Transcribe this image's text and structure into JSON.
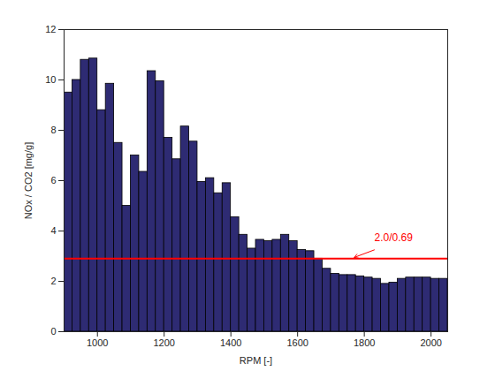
{
  "chart_data": {
    "type": "bar",
    "x_label": "RPM [-]",
    "y_label": "NOx / CO2 [mg/g]",
    "x": [
      912.5,
      937.5,
      962.5,
      987.5,
      1012.5,
      1037.5,
      1062.5,
      1087.5,
      1112.5,
      1137.5,
      1162.5,
      1187.5,
      1212.5,
      1237.5,
      1262.5,
      1287.5,
      1312.5,
      1337.5,
      1362.5,
      1387.5,
      1412.5,
      1437.5,
      1462.5,
      1487.5,
      1512.5,
      1537.5,
      1562.5,
      1587.5,
      1612.5,
      1637.5,
      1662.5,
      1687.5,
      1712.5,
      1737.5,
      1762.5,
      1787.5,
      1812.5,
      1837.5,
      1862.5,
      1887.5,
      1912.5,
      1937.5,
      1962.5,
      1987.5,
      2012.5,
      2037.5
    ],
    "values": [
      9.5,
      10.0,
      10.8,
      10.85,
      8.8,
      9.85,
      7.5,
      5.0,
      7.0,
      6.35,
      10.35,
      9.95,
      7.7,
      6.85,
      8.15,
      7.55,
      5.95,
      6.1,
      5.5,
      5.9,
      4.55,
      3.85,
      3.3,
      3.65,
      3.6,
      3.65,
      3.85,
      3.6,
      3.25,
      3.2,
      2.9,
      2.5,
      2.3,
      2.25,
      2.25,
      2.2,
      2.15,
      2.1,
      1.9,
      1.95,
      2.1,
      2.15,
      2.15,
      2.15,
      2.1,
      2.1
    ],
    "color": "#2e2b73",
    "xlim": [
      900,
      2050
    ],
    "xticks": [
      1000,
      1200,
      1400,
      1600,
      1800,
      2000
    ],
    "ylim": [
      0,
      12
    ],
    "yticks": [
      0,
      2,
      4,
      6,
      8,
      10,
      12
    ],
    "grid": false,
    "reference_line": {
      "value": 2.9,
      "color": "#ff0000"
    },
    "annotations": [
      {
        "text": "2.0/0.69",
        "x": 1830,
        "y": 3.6,
        "arrow_x": 1770,
        "arrow_y": 2.95,
        "color": "#ff0000"
      }
    ]
  }
}
